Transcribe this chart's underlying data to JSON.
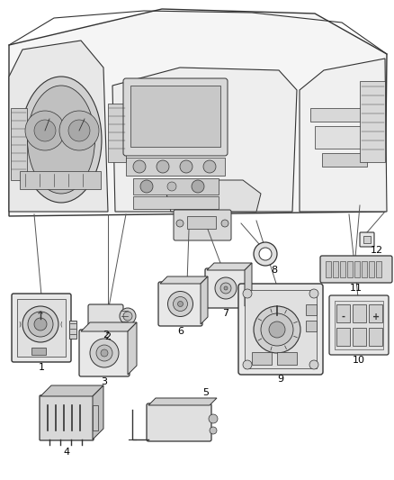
{
  "background_color": "#ffffff",
  "line_color": "#333333",
  "text_color": "#000000",
  "fig_width": 4.38,
  "fig_height": 5.33,
  "dpi": 100,
  "dash_color": "#f0f0f0",
  "dash_edge": "#333333",
  "comp_fill": "#e8e8e8",
  "comp_dark": "#cccccc",
  "comp_edge": "#333333"
}
